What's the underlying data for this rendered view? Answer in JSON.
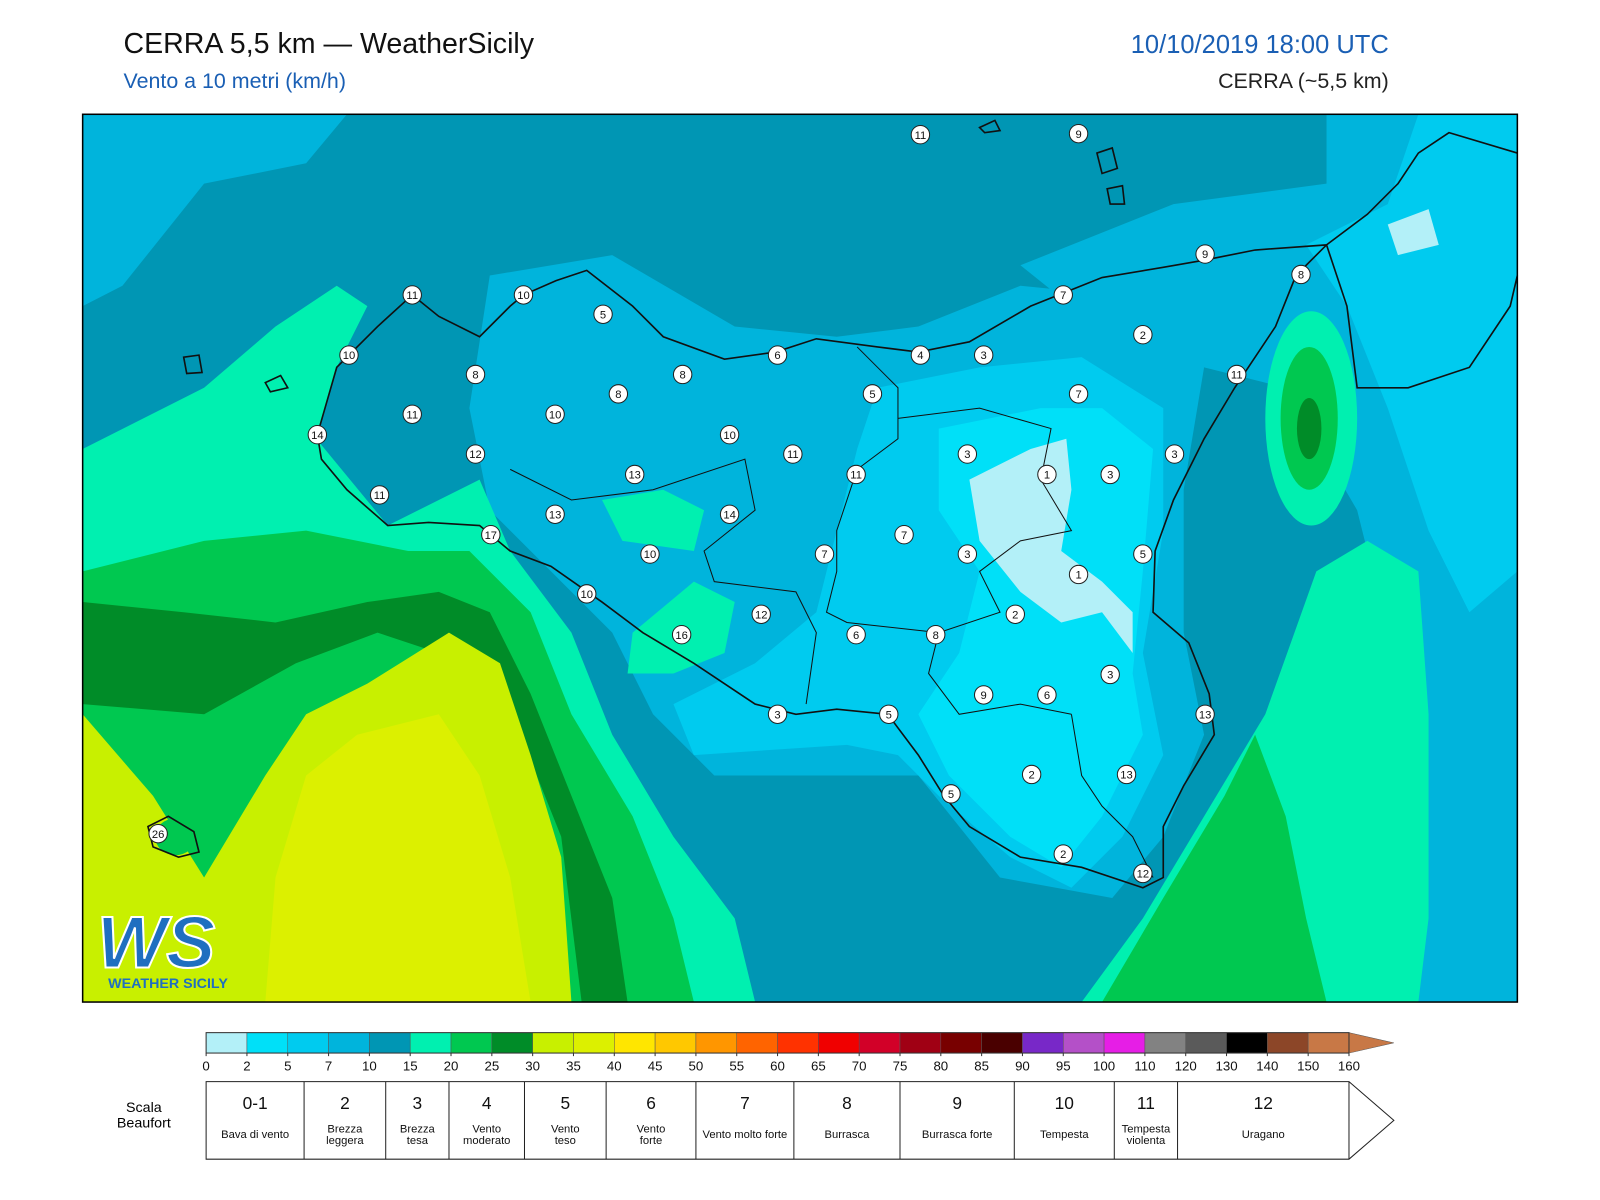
{
  "header": {
    "title": "CERRA 5,5 km — WeatherSicily",
    "subtitle": "Vento a 10 metri (km/h)",
    "datetime": "10/10/2019 18:00 UTC",
    "model": "CERRA (~5,5 km)"
  },
  "map": {
    "stations": [
      11,
      9,
      9,
      8,
      11,
      10,
      5,
      7,
      2,
      10,
      6,
      4,
      3,
      8,
      8,
      8,
      5,
      7,
      11,
      11,
      10,
      14,
      10,
      12,
      11,
      3,
      3,
      1,
      3,
      13,
      11,
      11,
      13,
      14,
      17,
      7,
      10,
      7,
      3,
      5,
      1,
      10,
      2,
      12,
      16,
      6,
      8,
      3,
      9,
      6,
      3,
      5,
      13,
      2,
      13,
      5,
      26,
      2,
      12
    ],
    "logo": {
      "mark": "WS",
      "text": "WEATHER SICILY"
    }
  },
  "colorbar": {
    "ticks": [
      0,
      2,
      5,
      7,
      10,
      15,
      20,
      25,
      30,
      35,
      40,
      45,
      50,
      55,
      60,
      65,
      70,
      75,
      80,
      85,
      90,
      95,
      100,
      110,
      120,
      130,
      140,
      150,
      160
    ],
    "colors": [
      "#b3f0f8",
      "#00e0f8",
      "#00cbef",
      "#00b4dc",
      "#0096b4",
      "#00f0b0",
      "#00c850",
      "#008c28",
      "#c8f000",
      "#dcf000",
      "#ffe600",
      "#ffc800",
      "#ff9600",
      "#ff6400",
      "#ff3200",
      "#f00000",
      "#d20028",
      "#a00014",
      "#780000",
      "#4a0000",
      "#7828c8",
      "#b450c8",
      "#e61ee6",
      "#828282",
      "#5a5a5a",
      "#000000",
      "#8c4628",
      "#c87846"
    ]
  },
  "beaufort": {
    "label": "Scala Beaufort",
    "levels": [
      {
        "force": "0-1",
        "name": "Bava di vento"
      },
      {
        "force": 2,
        "name": "Brezza leggera"
      },
      {
        "force": 3,
        "name": "Brezza tesa"
      },
      {
        "force": 4,
        "name": "Vento moderato"
      },
      {
        "force": 5,
        "name": "Vento teso"
      },
      {
        "force": 6,
        "name": "Vento forte"
      },
      {
        "force": 7,
        "name": "Vento molto forte"
      },
      {
        "force": 8,
        "name": "Burrasca"
      },
      {
        "force": 9,
        "name": "Burrasca forte"
      },
      {
        "force": 10,
        "name": "Tempesta"
      },
      {
        "force": 11,
        "name": "Tempesta violenta"
      },
      {
        "force": 12,
        "name": "Uragano"
      }
    ]
  }
}
